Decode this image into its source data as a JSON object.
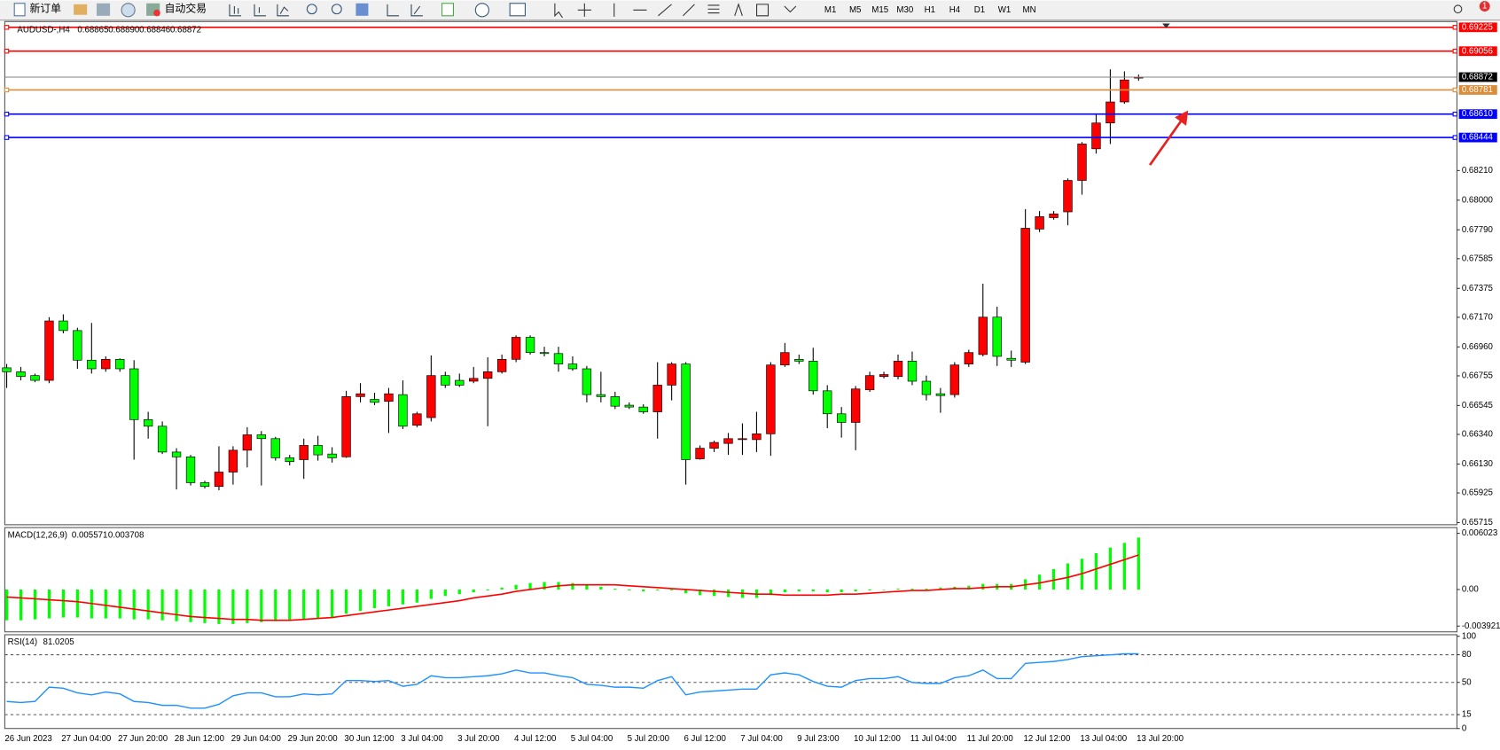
{
  "toolbar": {
    "new_order": "新订单",
    "auto_trading": "自动交易",
    "timeframes": [
      "M1",
      "M5",
      "M15",
      "M30",
      "H1",
      "H4",
      "D1",
      "W1",
      "MN"
    ],
    "notifications": "1"
  },
  "chart_data": [
    {
      "type": "candlestick",
      "symbol": "AUDUSD-,H4",
      "ohlc_labels": [
        "0.68865",
        "0.68890",
        "0.68846",
        "0.68872"
      ],
      "categories": [
        "26 Jun 2023",
        null,
        null,
        null,
        "27 Jun 04:00",
        null,
        null,
        null,
        "27 Jun 20:00",
        null,
        null,
        null,
        "28 Jun 12:00",
        null,
        null,
        null,
        "29 Jun 04:00",
        null,
        null,
        null,
        "29 Jun 20:00",
        null,
        null,
        null,
        "30 Jun 12:00",
        null,
        null,
        null,
        "3 Jul 04:00",
        null,
        null,
        null,
        "3 Jul 20:00",
        null,
        null,
        null,
        "4 Jul 12:00",
        null,
        null,
        null,
        "5 Jul 04:00",
        null,
        null,
        null,
        "5 Jul 20:00",
        null,
        null,
        null,
        "6 Jul 12:00",
        null,
        null,
        null,
        "7 Jul 04:00",
        null,
        null,
        null,
        "9 Jul 23:00",
        null,
        null,
        null,
        "10 Jul 12:00",
        null,
        null,
        null,
        "11 Jul 04:00",
        null,
        null,
        null,
        "11 Jul 20:00",
        null,
        null,
        null,
        "12 Jul 12:00",
        null,
        null,
        null,
        "13 Jul 04:00",
        null,
        null,
        null,
        "13 Jul 20:00"
      ],
      "open": [
        0.66812,
        0.66784,
        0.66757,
        0.66723,
        0.67144,
        0.67076,
        0.66866,
        0.66805,
        0.66872,
        0.66805,
        0.66445,
        0.66398,
        0.66215,
        0.66181,
        0.65998,
        0.65971,
        0.66073,
        0.66228,
        0.66337,
        0.6631,
        0.66174,
        0.66161,
        0.66262,
        0.66201,
        0.66181,
        0.66608,
        0.66588,
        0.66574,
        0.66622,
        0.66405,
        0.66459,
        0.66757,
        0.66723,
        0.66717,
        0.66737,
        0.66784,
        0.66872,
        0.67028,
        0.6692,
        0.66913,
        0.66839,
        0.66805,
        0.66622,
        0.66608,
        0.66547,
        0.66534,
        0.665,
        0.66689,
        0.66839,
        0.66167,
        0.66242,
        0.66276,
        0.66303,
        0.66303,
        0.66344,
        0.66832,
        0.66872,
        0.66859,
        0.66649,
        0.66486,
        0.66425,
        0.66656,
        0.6675,
        0.6675,
        0.66859,
        0.66717,
        0.66628,
        0.66622,
        0.66839,
        0.66906,
        0.67171,
        0.66879,
        0.66852,
        0.67795,
        0.67876,
        0.67917,
        0.6814,
        0.68364,
        0.68547,
        0.68696,
        0.68865
      ],
      "high": [
        0.66839,
        0.66818,
        0.66771,
        0.67171,
        0.67191,
        0.67096,
        0.6713,
        0.66893,
        0.66879,
        0.66866,
        0.665,
        0.66432,
        0.66242,
        0.66195,
        0.66011,
        0.66256,
        0.66256,
        0.66391,
        0.66364,
        0.66323,
        0.66195,
        0.6631,
        0.6633,
        0.66249,
        0.66649,
        0.66703,
        0.66635,
        0.66669,
        0.66723,
        0.665,
        0.669,
        0.66784,
        0.66771,
        0.66818,
        0.66886,
        0.66906,
        0.67042,
        0.67042,
        0.66961,
        0.66961,
        0.66893,
        0.66825,
        0.66784,
        0.66642,
        0.66567,
        0.66554,
        0.66852,
        0.66852,
        0.66852,
        0.66262,
        0.66296,
        0.6635,
        0.66418,
        0.665,
        0.66852,
        0.66988,
        0.66906,
        0.66954,
        0.66689,
        0.66534,
        0.66683,
        0.66784,
        0.66784,
        0.66906,
        0.66927,
        0.66757,
        0.66669,
        0.66852,
        0.6694,
        0.67408,
        0.67245,
        0.66934,
        0.67937,
        0.67923,
        0.67923,
        0.68154,
        0.68412,
        0.68615,
        0.68927,
        0.68913,
        0.6889
      ],
      "low": [
        0.66669,
        0.66723,
        0.6671,
        0.66703,
        0.67056,
        0.66805,
        0.66771,
        0.66784,
        0.66784,
        0.66161,
        0.6631,
        0.66201,
        0.6595,
        0.65978,
        0.65957,
        0.65944,
        0.65984,
        0.66106,
        0.65978,
        0.66154,
        0.6612,
        0.66025,
        0.66154,
        0.6614,
        0.66174,
        0.66567,
        0.66547,
        0.6635,
        0.66378,
        0.66391,
        0.66432,
        0.66669,
        0.66676,
        0.66703,
        0.66398,
        0.66771,
        0.66852,
        0.66906,
        0.66893,
        0.66784,
        0.66791,
        0.66567,
        0.66567,
        0.6652,
        0.6652,
        0.66486,
        0.6631,
        0.66581,
        0.65984,
        0.66161,
        0.66215,
        0.66195,
        0.66195,
        0.66215,
        0.66188,
        0.66818,
        0.66839,
        0.66622,
        0.66384,
        0.66317,
        0.66228,
        0.66642,
        0.66737,
        0.6673,
        0.66689,
        0.66581,
        0.66493,
        0.66601,
        0.66818,
        0.66893,
        0.66825,
        0.66818,
        0.66839,
        0.67774,
        0.67862,
        0.67822,
        0.68039,
        0.6833,
        0.68398,
        0.68683,
        0.68846
      ],
      "close": [
        0.66784,
        0.6675,
        0.66723,
        0.67144,
        0.67076,
        0.66866,
        0.66805,
        0.66872,
        0.66805,
        0.66445,
        0.66398,
        0.66215,
        0.66181,
        0.65998,
        0.65971,
        0.66073,
        0.66228,
        0.66337,
        0.6631,
        0.66174,
        0.66147,
        0.66262,
        0.66195,
        0.66174,
        0.66608,
        0.66628,
        0.66567,
        0.66628,
        0.66398,
        0.66486,
        0.66757,
        0.66689,
        0.66689,
        0.66737,
        0.66784,
        0.66872,
        0.67028,
        0.6692,
        0.66913,
        0.66839,
        0.66805,
        0.66622,
        0.66608,
        0.6654,
        0.66534,
        0.665,
        0.66689,
        0.66839,
        0.66161,
        0.66242,
        0.66283,
        0.6631,
        0.6631,
        0.66344,
        0.66832,
        0.6692,
        0.66859,
        0.66649,
        0.66486,
        0.66425,
        0.66662,
        0.66757,
        0.66764,
        0.66859,
        0.66717,
        0.66622,
        0.66615,
        0.66832,
        0.6692,
        0.67171,
        0.66893,
        0.66866,
        0.67801,
        0.67883,
        0.67903,
        0.6814,
        0.68398,
        0.68547,
        0.68696,
        0.68852,
        0.68872
      ],
      "up_color": "#ff0000",
      "down_color": "#00ff00",
      "last_price_color": "#808080",
      "ylim": [
        0.657,
        0.69266
      ],
      "yticks": [
        {
          "value": 0.6821,
          "label": "0.68210"
        },
        {
          "value": 0.68,
          "label": "0.68000"
        },
        {
          "value": 0.6779,
          "label": "0.67790"
        },
        0.67585,
        0.67375,
        {
          "value": 0.6717,
          "label": "0.67170"
        },
        {
          "value": 0.6696,
          "label": "0.66960"
        },
        0.66755,
        0.66545,
        {
          "value": 0.6634,
          "label": "0.66340"
        },
        {
          "value": 0.6613,
          "label": "0.66130"
        },
        0.65925,
        0.65715
      ],
      "hlines": [
        {
          "value": 0.69225,
          "color": "#ff0000"
        },
        {
          "value": 0.69056,
          "color": "#ff0000"
        },
        {
          "value": 0.68781,
          "color": "#d98c3a"
        },
        {
          "value": 0.6861,
          "label": "0.68610",
          "color": "#0000ff"
        },
        {
          "value": 0.68444,
          "color": "#0000ff"
        }
      ]
    },
    {
      "type": "macd",
      "name": "MACD(12,26,9)",
      "main_color": "#00ff00",
      "signal_color": "#ff0000",
      "main": [
        -0.0033,
        -0.0033,
        -0.0032,
        -0.0031,
        -0.003,
        -0.003,
        -0.0031,
        -0.0031,
        -0.0031,
        -0.0032,
        -0.0032,
        -0.0033,
        -0.0034,
        -0.0035,
        -0.0036,
        -0.0037,
        -0.0037,
        -0.0036,
        -0.0035,
        -0.0034,
        -0.0033,
        -0.0032,
        -0.0031,
        -0.003,
        -0.0026,
        -0.0023,
        -0.002,
        -0.0018,
        -0.0016,
        -0.0014,
        -0.001,
        -0.0007,
        -0.0005,
        -0.0003,
        -0.0001,
        0.0002,
        0.0005,
        0.0007,
        0.0008,
        0.0008,
        0.0007,
        0.0005,
        0.0003,
        0.0001,
        -0.0001,
        -0.0002,
        -0.0001,
        -0.0001,
        -0.0004,
        -0.0006,
        -0.0007,
        -0.0008,
        -0.0009,
        -0.0009,
        -0.0006,
        -0.0003,
        -0.0002,
        -0.0002,
        -0.0003,
        -0.0003,
        -0.0002,
        -0.0001,
        0.0,
        0.0001,
        0.0001,
        0.0001,
        0.0002,
        0.0003,
        0.0004,
        0.0006,
        0.0006,
        0.0006,
        0.0011,
        0.0016,
        0.0022,
        0.0028,
        0.0033,
        0.0039,
        0.0045,
        0.005,
        0.005571
      ],
      "signal": [
        -0.0008,
        -0.0009,
        -0.001,
        -0.0011,
        -0.0012,
        -0.0013,
        -0.0015,
        -0.0017,
        -0.0019,
        -0.0021,
        -0.0023,
        -0.0025,
        -0.0027,
        -0.0029,
        -0.003,
        -0.0031,
        -0.0032,
        -0.0032,
        -0.0033,
        -0.0033,
        -0.0033,
        -0.0032,
        -0.0031,
        -0.003,
        -0.0028,
        -0.0026,
        -0.0024,
        -0.0022,
        -0.002,
        -0.0018,
        -0.0016,
        -0.0014,
        -0.0012,
        -0.0009,
        -0.0007,
        -0.0005,
        -0.0002,
        0.0,
        0.0002,
        0.0004,
        0.0005,
        0.0005,
        0.0005,
        0.0005,
        0.0004,
        0.0003,
        0.0002,
        0.0001,
        0.0,
        -0.0001,
        -0.0002,
        -0.0003,
        -0.0004,
        -0.0005,
        -0.0005,
        -0.0006,
        -0.0006,
        -0.0006,
        -0.0006,
        -0.0005,
        -0.0005,
        -0.0004,
        -0.0003,
        -0.0002,
        -0.0001,
        -0.0001,
        0.0,
        0.0001,
        0.0001,
        0.0002,
        0.0003,
        0.0003,
        0.0005,
        0.0007,
        0.001,
        0.0013,
        0.0017,
        0.0022,
        0.0027,
        0.0032,
        0.003708
      ],
      "ylim": [
        -0.00454,
        0.00664
      ],
      "yticks": [
        0.006023,
        {
          "value": 0,
          "label": "0.00"
        },
        -0.003921
      ]
    },
    {
      "type": "rsi",
      "name": "RSI(14)",
      "color": "#1e90ff",
      "values": [
        29.3,
        28.2,
        29.3,
        44.8,
        43.7,
        38.6,
        36.5,
        39.6,
        37.5,
        29.3,
        28.2,
        25.1,
        25.1,
        22.0,
        22.0,
        26.2,
        35.5,
        38.6,
        38.6,
        34.4,
        34.4,
        37.5,
        36.5,
        37.5,
        52.0,
        52.0,
        51.0,
        52.0,
        45.8,
        47.9,
        57.2,
        55.1,
        55.1,
        56.2,
        57.2,
        59.3,
        63.4,
        60.3,
        60.3,
        57.2,
        55.1,
        47.9,
        46.8,
        44.8,
        44.8,
        43.7,
        52.0,
        56.2,
        36.5,
        39.6,
        40.6,
        41.6,
        42.7,
        42.7,
        58.2,
        60.3,
        58.2,
        51.0,
        45.8,
        44.8,
        52.0,
        54.1,
        54.1,
        56.2,
        49.9,
        48.9,
        48.9,
        55.1,
        57.2,
        63.4,
        54.1,
        54.1,
        70.6,
        71.7,
        72.7,
        74.8,
        77.9,
        78.9,
        79.9,
        81.0,
        81.0205
      ],
      "ylim": [
        0,
        101.7
      ],
      "yticks": [
        100,
        80,
        50,
        15,
        0
      ],
      "levels": [
        80,
        50,
        15
      ]
    }
  ]
}
